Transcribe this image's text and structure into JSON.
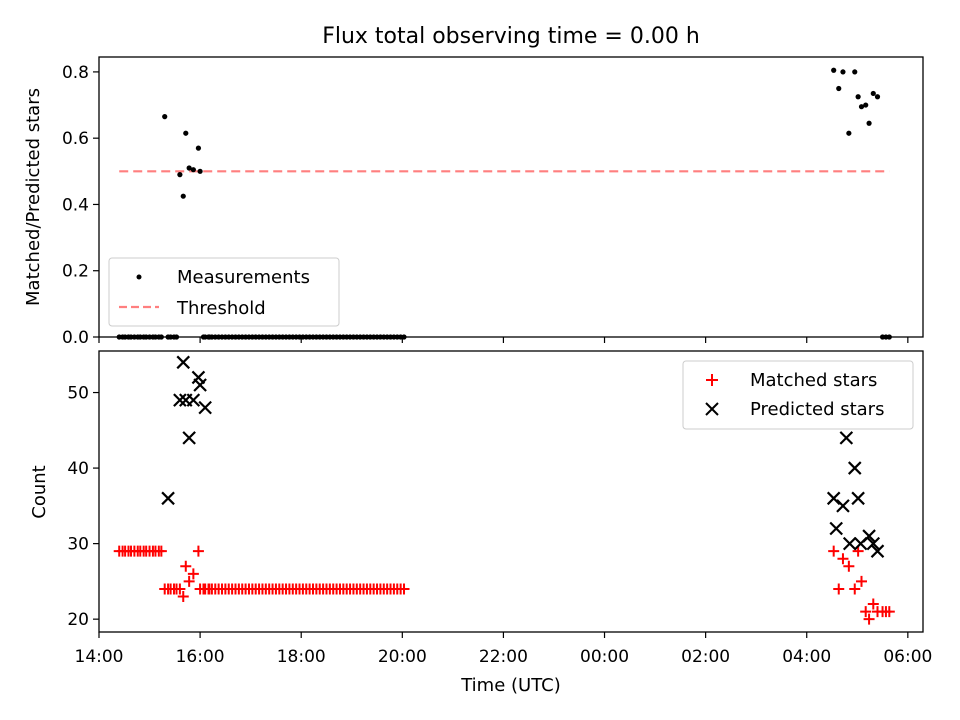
{
  "figure": {
    "title": "Flux total observing time = 0.00 h",
    "xlabel": "Time (UTC)"
  },
  "chart_data": [
    {
      "type": "scatter",
      "ylabel": "Matched/Predicted stars",
      "xlim": [
        "14:00",
        "06:18"
      ],
      "ylim": [
        0,
        0.845
      ],
      "yticks": [
        0.0,
        0.2,
        0.4,
        0.6,
        0.8
      ],
      "ytick_labels": [
        "0.0",
        "0.2",
        "0.4",
        "0.6",
        "0.8"
      ],
      "grid": false,
      "legend_position": "lower-left",
      "series": [
        {
          "name": "Measurements",
          "color": "#000000",
          "marker": "dot",
          "x": [
            "14:24",
            "14:28",
            "14:31",
            "14:35",
            "14:38",
            "14:42",
            "14:46",
            "14:49",
            "14:53",
            "14:56",
            "15:00",
            "15:04",
            "15:07",
            "15:11",
            "15:14",
            "15:18",
            "15:22",
            "15:25",
            "15:29",
            "15:32",
            "15:36",
            "15:40",
            "15:43",
            "15:47",
            "15:52",
            "15:58",
            "16:00",
            "16:04",
            "16:06",
            "16:10",
            "16:11",
            "16:14",
            "16:18",
            "16:22",
            "16:26",
            "16:30",
            "16:34",
            "16:38",
            "16:42",
            "16:46",
            "16:50",
            "16:54",
            "16:58",
            "17:02",
            "17:06",
            "17:10",
            "17:14",
            "17:18",
            "17:22",
            "17:26",
            "17:30",
            "17:34",
            "17:38",
            "17:42",
            "17:46",
            "17:50",
            "17:54",
            "17:58",
            "18:02",
            "18:06",
            "18:10",
            "18:14",
            "18:18",
            "18:22",
            "18:26",
            "18:30",
            "18:34",
            "18:38",
            "18:42",
            "18:46",
            "18:50",
            "18:54",
            "18:58",
            "19:02",
            "19:06",
            "19:10",
            "19:14",
            "19:18",
            "19:22",
            "19:26",
            "19:30",
            "19:34",
            "19:38",
            "19:42",
            "19:46",
            "19:50",
            "19:54",
            "19:58",
            "20:02",
            "04:32",
            "04:38",
            "04:43",
            "04:50",
            "04:57",
            "05:01",
            "05:05",
            "05:10",
            "05:14",
            "05:19",
            "05:24",
            "05:30",
            "05:34",
            "05:38"
          ],
          "y": [
            0,
            0,
            0,
            0,
            0,
            0,
            0,
            0,
            0,
            0,
            0,
            0,
            0,
            0,
            0,
            0.665,
            0,
            0,
            0,
            0,
            0.49,
            0.425,
            0.615,
            0.51,
            0.505,
            0.57,
            0.5,
            0,
            0,
            0,
            0,
            0,
            0,
            0,
            0,
            0,
            0,
            0,
            0,
            0,
            0,
            0,
            0,
            0,
            0,
            0,
            0,
            0,
            0,
            0,
            0,
            0,
            0,
            0,
            0,
            0,
            0,
            0,
            0,
            0,
            0,
            0,
            0,
            0,
            0,
            0,
            0,
            0,
            0,
            0,
            0,
            0,
            0,
            0,
            0,
            0,
            0,
            0,
            0,
            0,
            0,
            0,
            0,
            0,
            0,
            0,
            0,
            0,
            0,
            0.805,
            0.75,
            0.8,
            0.615,
            0.8,
            0.725,
            0.695,
            0.7,
            0.645,
            0.735,
            0.725,
            0,
            0,
            0
          ]
        },
        {
          "name": "Threshold",
          "color": "#ff7f7f",
          "style": "dashed",
          "x": [
            "14:24",
            "05:38"
          ],
          "y": [
            0.5,
            0.5
          ]
        }
      ]
    },
    {
      "type": "scatter",
      "ylabel": "Count",
      "xlim": [
        "14:00",
        "06:18"
      ],
      "ylim": [
        18.3,
        55.5
      ],
      "yticks": [
        20,
        30,
        40,
        50
      ],
      "ytick_labels": [
        "20",
        "30",
        "40",
        "50"
      ],
      "xticks": [
        "14:00",
        "16:00",
        "18:00",
        "20:00",
        "22:00",
        "00:00",
        "02:00",
        "04:00",
        "06:00"
      ],
      "xtick_labels": [
        "14:00",
        "16:00",
        "18:00",
        "20:00",
        "22:00",
        "00:00",
        "02:00",
        "04:00",
        "06:00"
      ],
      "grid": false,
      "legend_position": "top-right",
      "series": [
        {
          "name": "Matched stars",
          "color": "#ff0000",
          "marker": "plus",
          "x": [
            "14:24",
            "14:28",
            "14:31",
            "14:35",
            "14:38",
            "14:42",
            "14:46",
            "14:49",
            "14:53",
            "14:56",
            "15:00",
            "15:04",
            "15:07",
            "15:11",
            "15:14",
            "15:18",
            "15:22",
            "15:25",
            "15:29",
            "15:32",
            "15:36",
            "15:40",
            "15:43",
            "15:47",
            "15:52",
            "15:58",
            "16:00",
            "16:04",
            "16:06",
            "16:10",
            "16:11",
            "16:14",
            "16:18",
            "16:22",
            "16:26",
            "16:30",
            "16:34",
            "16:38",
            "16:42",
            "16:46",
            "16:50",
            "16:54",
            "16:58",
            "17:02",
            "17:06",
            "17:10",
            "17:14",
            "17:18",
            "17:22",
            "17:26",
            "17:30",
            "17:34",
            "17:38",
            "17:42",
            "17:46",
            "17:50",
            "17:54",
            "17:58",
            "18:02",
            "18:06",
            "18:10",
            "18:14",
            "18:18",
            "18:22",
            "18:26",
            "18:30",
            "18:34",
            "18:38",
            "18:42",
            "18:46",
            "18:50",
            "18:54",
            "18:58",
            "19:02",
            "19:06",
            "19:10",
            "19:14",
            "19:18",
            "19:22",
            "19:26",
            "19:30",
            "19:34",
            "19:38",
            "19:42",
            "19:46",
            "19:50",
            "19:54",
            "19:58",
            "20:02",
            "04:32",
            "04:38",
            "04:43",
            "04:50",
            "04:57",
            "05:01",
            "05:05",
            "05:10",
            "05:14",
            "05:19",
            "05:24",
            "05:30",
            "05:34",
            "05:38"
          ],
          "y": [
            29,
            29,
            29,
            29,
            29,
            29,
            29,
            29,
            29,
            29,
            29,
            29,
            29,
            29,
            29,
            24,
            24,
            24,
            24,
            24,
            24,
            23,
            27,
            25,
            26,
            29,
            24,
            24,
            24,
            24,
            24,
            24,
            24,
            24,
            24,
            24,
            24,
            24,
            24,
            24,
            24,
            24,
            24,
            24,
            24,
            24,
            24,
            24,
            24,
            24,
            24,
            24,
            24,
            24,
            24,
            24,
            24,
            24,
            24,
            24,
            24,
            24,
            24,
            24,
            24,
            24,
            24,
            24,
            24,
            24,
            24,
            24,
            24,
            24,
            24,
            24,
            24,
            24,
            24,
            24,
            24,
            24,
            24,
            24,
            24,
            24,
            24,
            24,
            24,
            29,
            24,
            28,
            27,
            24,
            29,
            25,
            21,
            20,
            22,
            21,
            21,
            21,
            21
          ]
        },
        {
          "name": "Predicted stars",
          "color": "#000000",
          "marker": "x",
          "x": [
            "15:22",
            "15:36",
            "15:40",
            "15:43",
            "15:47",
            "15:52",
            "15:58",
            "16:00",
            "16:06",
            "04:32",
            "04:35",
            "04:43",
            "04:47",
            "04:51",
            "04:57",
            "05:01",
            "05:04",
            "05:14",
            "05:19",
            "05:24"
          ],
          "y": [
            36,
            49,
            54,
            49,
            44,
            49,
            52,
            51,
            48,
            36,
            32,
            35,
            44,
            30,
            40,
            36,
            30,
            31,
            30,
            29
          ]
        }
      ]
    }
  ]
}
